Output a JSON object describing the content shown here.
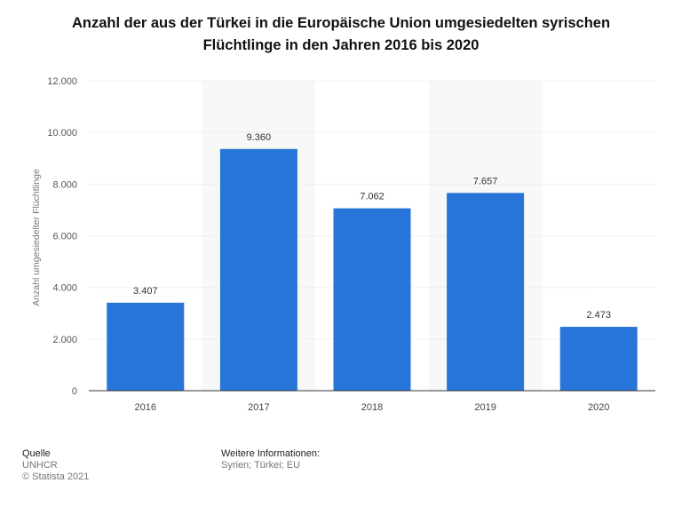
{
  "title": "Anzahl der aus der Türkei in die Europäische Union umgesiedelten syrischen Flüchtlinge in den Jahren 2016 bis 2020",
  "chart_data": {
    "type": "bar",
    "categories": [
      "2016",
      "2017",
      "2018",
      "2019",
      "2020"
    ],
    "values": [
      3407,
      9360,
      7062,
      7657,
      2473
    ],
    "value_labels": [
      "3.407",
      "9.360",
      "7.062",
      "7.657",
      "2.473"
    ],
    "ylabel": "Anzahl umgesiedelter Flüchtlinge",
    "xlabel": "",
    "ylim": [
      0,
      12000
    ],
    "yticks": [
      0,
      2000,
      4000,
      6000,
      8000,
      10000,
      12000
    ],
    "ytick_labels": [
      "0",
      "2.000",
      "4.000",
      "6.000",
      "8.000",
      "10.000",
      "12.000"
    ],
    "grid": true,
    "legend": "none",
    "bar_color": "#2775d8"
  },
  "footer": {
    "source_heading": "Quelle",
    "source_name": "UNHCR",
    "copyright": "© Statista 2021",
    "info_heading": "Weitere Informationen:",
    "info_text": "Syrien; Türkei; EU"
  }
}
